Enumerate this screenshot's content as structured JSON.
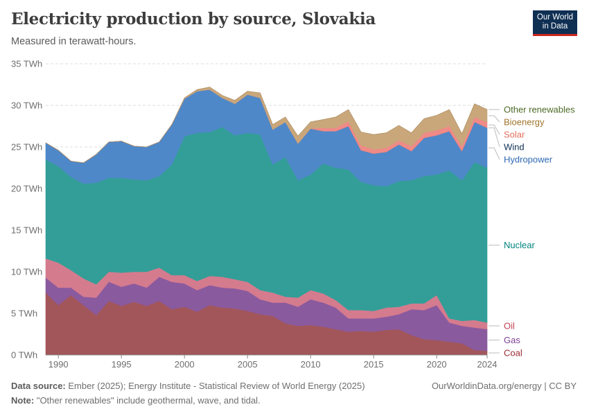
{
  "header": {
    "title": "Electricity production by source, Slovakia",
    "subtitle": "Measured in terawatt-hours.",
    "logo_line1": "Our World",
    "logo_line2": "in Data"
  },
  "footer": {
    "source_label": "Data source:",
    "source_text": " Ember (2025); Energy Institute - Statistical Review of World Energy (2025)",
    "credit": "OurWorldinData.org/energy | CC BY",
    "note_label": "Note:",
    "note_text": " \"Other renewables\" include geothermal, wave, and tidal."
  },
  "chart_data": {
    "type": "area",
    "stacked": true,
    "unit": "TWh",
    "ylim": [
      0,
      35
    ],
    "y_ticks": [
      0,
      5,
      10,
      15,
      20,
      25,
      30,
      35
    ],
    "y_tick_labels": [
      "0 TWh",
      "5 TWh",
      "10 TWh",
      "15 TWh",
      "20 TWh",
      "25 TWh",
      "30 TWh",
      "35 TWh"
    ],
    "xlim": [
      1989,
      2024
    ],
    "x_ticks": [
      1990,
      1995,
      2000,
      2005,
      2010,
      2015,
      2020,
      2024
    ],
    "x": [
      1989,
      1990,
      1991,
      1992,
      1993,
      1994,
      1995,
      1996,
      1997,
      1998,
      1999,
      2000,
      2001,
      2002,
      2003,
      2004,
      2005,
      2006,
      2007,
      2008,
      2009,
      2010,
      2011,
      2012,
      2013,
      2014,
      2015,
      2016,
      2017,
      2018,
      2019,
      2020,
      2021,
      2022,
      2023,
      2024
    ],
    "grid": true,
    "series": [
      {
        "name": "Coal",
        "color": "#a2565a",
        "label_color": "#9d2a31",
        "values": [
          7.5,
          6.0,
          7.2,
          6.0,
          4.8,
          6.5,
          5.9,
          6.4,
          5.9,
          6.5,
          5.5,
          5.8,
          5.2,
          6.0,
          5.7,
          5.6,
          5.3,
          4.9,
          4.7,
          3.8,
          3.5,
          3.6,
          3.4,
          3.1,
          2.8,
          2.9,
          2.8,
          3.0,
          3.1,
          2.4,
          1.9,
          1.8,
          1.6,
          1.4,
          0.6,
          0.5
        ]
      },
      {
        "name": "Gas",
        "color": "#8a5a9e",
        "label_color": "#7b3f92",
        "values": [
          1.8,
          2.1,
          0.9,
          1.0,
          2.1,
          2.3,
          2.3,
          2.2,
          2.2,
          2.9,
          3.3,
          2.8,
          2.6,
          2.4,
          2.4,
          2.4,
          2.4,
          1.8,
          1.6,
          2.5,
          2.3,
          3.1,
          2.9,
          2.6,
          1.6,
          1.5,
          1.6,
          1.6,
          1.8,
          3.1,
          3.5,
          4.2,
          2.3,
          2.1,
          2.7,
          2.6
        ]
      },
      {
        "name": "Oil",
        "color": "#d57b8e",
        "label_color": "#c0424f",
        "values": [
          2.3,
          3.0,
          2.1,
          2.2,
          1.6,
          1.2,
          1.7,
          1.4,
          1.9,
          1.1,
          0.8,
          1.0,
          1.1,
          1.1,
          1.3,
          1.1,
          1.1,
          1.1,
          1.2,
          0.7,
          1.1,
          1.1,
          1.1,
          0.9,
          1.0,
          1.0,
          0.9,
          1.1,
          0.9,
          0.7,
          0.8,
          1.2,
          0.5,
          0.6,
          0.9,
          0.8
        ]
      },
      {
        "name": "Nuclear",
        "color": "#339e98",
        "label_color": "#00847e",
        "values": [
          11.9,
          11.6,
          11.2,
          11.4,
          12.2,
          11.3,
          11.4,
          11.1,
          11.0,
          11.0,
          13.3,
          16.7,
          17.8,
          17.3,
          18.0,
          17.3,
          17.9,
          18.7,
          15.4,
          16.8,
          14.1,
          13.9,
          15.6,
          15.9,
          16.9,
          15.4,
          15.1,
          14.6,
          15.1,
          14.8,
          15.3,
          14.5,
          17.8,
          16.9,
          19.0,
          18.6
        ]
      },
      {
        "name": "Hydropower",
        "color": "#4f88c9",
        "label_color": "#2d68b3",
        "values": [
          2.0,
          1.9,
          1.9,
          2.5,
          3.4,
          4.3,
          4.4,
          4.0,
          4.0,
          4.1,
          4.8,
          4.5,
          5.0,
          5.1,
          3.5,
          3.8,
          4.6,
          4.4,
          4.2,
          4.2,
          4.4,
          5.5,
          3.9,
          4.4,
          5.2,
          3.8,
          3.8,
          4.1,
          4.4,
          3.5,
          4.6,
          4.7,
          4.7,
          3.5,
          4.8,
          4.8
        ]
      },
      {
        "name": "Wind",
        "color": "#1f3b63",
        "label_color": "#0f2f53",
        "values": [
          0,
          0,
          0,
          0,
          0,
          0,
          0,
          0,
          0,
          0,
          0,
          0,
          0,
          0,
          0,
          0,
          0,
          0,
          0,
          0,
          0,
          0,
          0,
          0,
          0,
          0,
          0,
          0,
          0,
          0,
          0,
          0,
          0,
          0,
          0,
          0
        ]
      },
      {
        "name": "Solar",
        "color": "#ef8a87",
        "label_color": "#e56e5a",
        "values": [
          0,
          0,
          0,
          0,
          0,
          0,
          0,
          0,
          0,
          0,
          0,
          0,
          0,
          0,
          0,
          0,
          0,
          0,
          0,
          0,
          0.02,
          0.02,
          0.4,
          0.4,
          0.6,
          0.6,
          0.5,
          0.5,
          0.5,
          0.6,
          0.6,
          0.6,
          0.6,
          0.6,
          0.6,
          0.7
        ]
      },
      {
        "name": "Bioenergy",
        "color": "#c9a77b",
        "label_color": "#a2752d",
        "values": [
          0,
          0,
          0,
          0,
          0,
          0,
          0,
          0,
          0,
          0,
          0,
          0.1,
          0.2,
          0.3,
          0.3,
          0.4,
          0.4,
          0.6,
          0.6,
          0.6,
          0.9,
          0.8,
          1.0,
          1.3,
          1.4,
          1.6,
          1.8,
          1.8,
          1.8,
          1.6,
          1.7,
          1.8,
          2.0,
          1.5,
          1.6,
          1.5
        ]
      },
      {
        "name": "Other renewables",
        "color": "#a88a5e",
        "label_color": "#4c6a26",
        "values": [
          0,
          0,
          0,
          0,
          0,
          0,
          0,
          0,
          0,
          0,
          0,
          0,
          0,
          0,
          0,
          0,
          0,
          0,
          0,
          0,
          0,
          0,
          0,
          0,
          0,
          0,
          0,
          0,
          0,
          0,
          0,
          0,
          0,
          0,
          0,
          0
        ]
      }
    ]
  }
}
